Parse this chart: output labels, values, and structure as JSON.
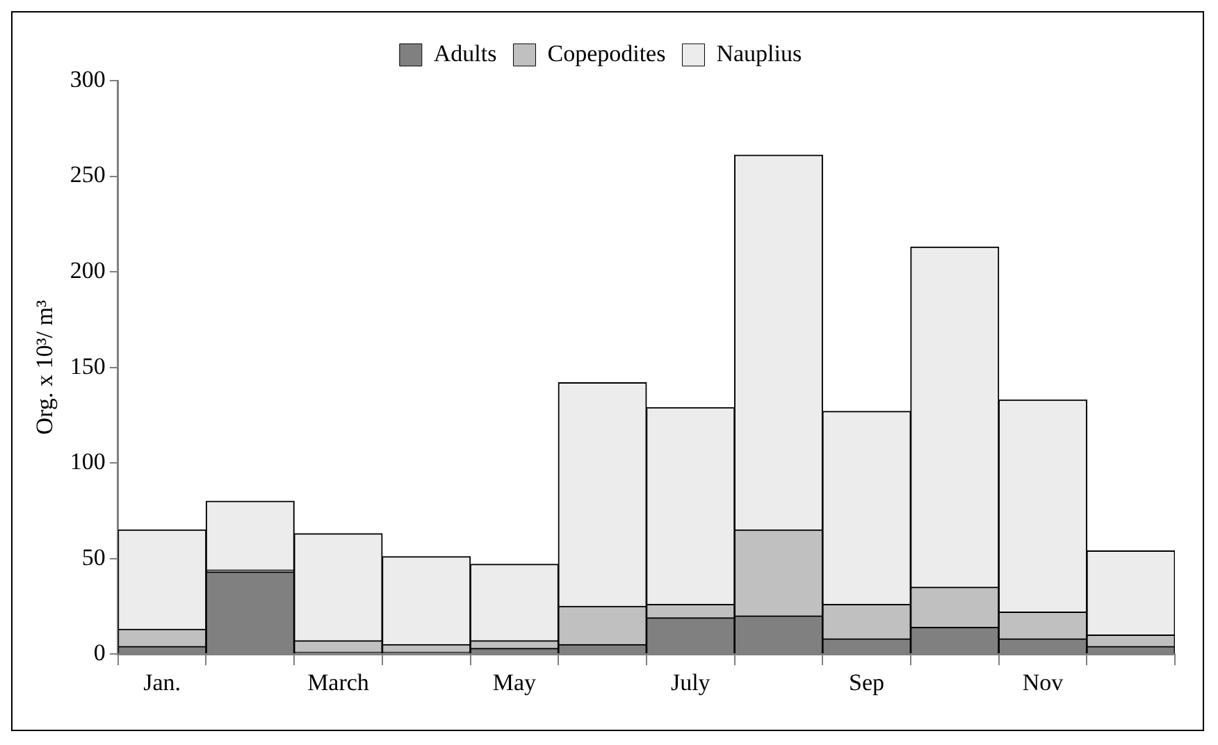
{
  "chart_data": {
    "type": "bar",
    "stacked": true,
    "ylabel": "Org. x 10³/ m³",
    "categories": [
      "Jan.",
      null,
      "March",
      null,
      "May",
      null,
      "July",
      null,
      "Sep",
      null,
      "Nov",
      null
    ],
    "series": [
      {
        "name": "Adults",
        "color": "#808080",
        "values": [
          4,
          43,
          1,
          1,
          3,
          5,
          19,
          20,
          8,
          14,
          8,
          4
        ]
      },
      {
        "name": "Copepodites",
        "color": "#c0c0c0",
        "values": [
          9,
          1,
          6,
          4,
          4,
          20,
          7,
          45,
          18,
          21,
          14,
          6
        ]
      },
      {
        "name": "Nauplius",
        "color": "#ececec",
        "values": [
          52,
          36,
          56,
          46,
          40,
          117,
          103,
          196,
          101,
          178,
          111,
          44
        ]
      }
    ],
    "ylim": [
      0,
      300
    ],
    "yticks": [
      0,
      50,
      100,
      150,
      200,
      250,
      300
    ],
    "grid": false,
    "legend": "top"
  }
}
